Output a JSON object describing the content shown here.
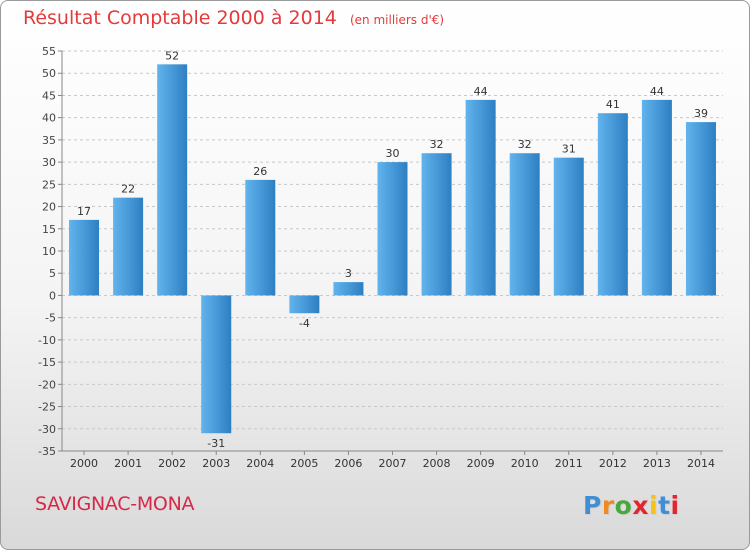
{
  "header": {
    "title": "Résultat Comptable 2000 à 2014",
    "subtitle": "(en milliers d'€)"
  },
  "footer": {
    "commune": "SAVIGNAC-MONA",
    "logo": "Proxiti"
  },
  "colors": {
    "title": "#e33b3b",
    "bar_light": "#62b4ee",
    "bar_dark": "#2d7fc2",
    "commune": "#d6294a"
  },
  "chart_data": {
    "type": "bar",
    "categories": [
      "2000",
      "2001",
      "2002",
      "2003",
      "2004",
      "2005",
      "2006",
      "2007",
      "2008",
      "2009",
      "2010",
      "2011",
      "2012",
      "2013",
      "2014"
    ],
    "values": [
      17,
      22,
      52,
      -31,
      26,
      -4,
      3,
      30,
      32,
      44,
      32,
      31,
      41,
      44,
      39
    ],
    "data_labels": [
      "17",
      "22",
      "52",
      "-31",
      "26",
      "-4",
      "3",
      "30",
      "32",
      "44",
      "32",
      "31",
      "41",
      "44",
      "39"
    ],
    "title": "Résultat Comptable 2000 à 2014",
    "subtitle": "(en milliers d'€)",
    "ylim": [
      -35,
      55
    ],
    "yticks": [
      55,
      50,
      45,
      40,
      35,
      30,
      25,
      20,
      15,
      10,
      5,
      0,
      -5,
      -10,
      -15,
      -20,
      -25,
      -30,
      -35
    ],
    "ytick_labels": [
      "55",
      "50",
      "45",
      "40",
      "35",
      "30",
      "25",
      "20",
      "15",
      "10",
      "5",
      "0",
      "-5",
      "-10",
      "-15",
      "-20",
      "-25",
      "-30",
      "-35"
    ],
    "grid": true,
    "legend": "none"
  }
}
